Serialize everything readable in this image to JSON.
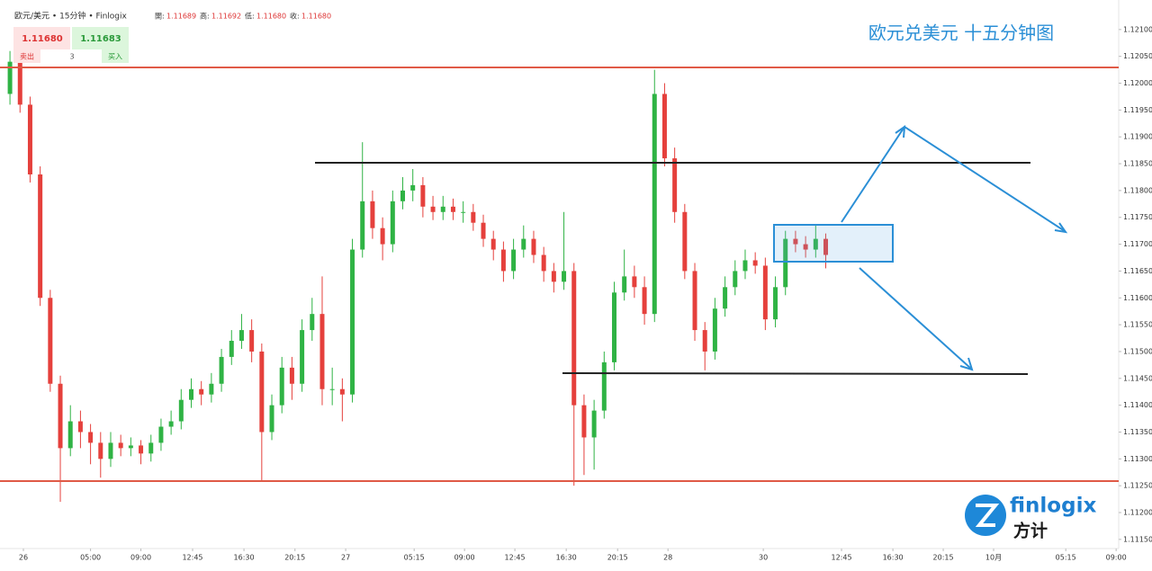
{
  "header": {
    "symbol": "欧元/美元 • 15分钟 • Finlogix",
    "ohlc": [
      {
        "label": "開:",
        "value": "1.11689"
      },
      {
        "label": "高:",
        "value": "1.11692"
      },
      {
        "label": "低:",
        "value": "1.11680"
      },
      {
        "label": "收:",
        "value": "1.11680"
      }
    ],
    "bid": "1.11680",
    "ask": "1.11683",
    "sell": "卖出",
    "spread": "3",
    "buy": "买入"
  },
  "logo": {
    "name": "finlogix",
    "chinese": "方计"
  },
  "chart_data": {
    "type": "candlestick",
    "title": "欧元兑美元 十五分钟图",
    "up_color": "#2fb344",
    "down_color": "#e5403c",
    "x": [
      -4,
      -1,
      2,
      5,
      8,
      11,
      14,
      17,
      20,
      23,
      26,
      29,
      32,
      35,
      38,
      41,
      44,
      47,
      50,
      53,
      56,
      59,
      62,
      65,
      68,
      71,
      74,
      77,
      80,
      83,
      86,
      89,
      92,
      95,
      98,
      101,
      104,
      107,
      110,
      113,
      116,
      119,
      122,
      125,
      128,
      131,
      134,
      137,
      140,
      143,
      146,
      149,
      152,
      155,
      158,
      161,
      164,
      167,
      170,
      173,
      176,
      179,
      182,
      185,
      188,
      191,
      194,
      197,
      200,
      203,
      206,
      209,
      212,
      215,
      218,
      221,
      224,
      227,
      230,
      233,
      236,
      239
    ],
    "open": [
      1.1198,
      1.1204,
      1.1196,
      1.1183,
      1.116,
      1.1144,
      1.1132,
      1.1137,
      1.1135,
      1.1133,
      1.113,
      1.1133,
      1.1132,
      1.11325,
      1.1131,
      1.1133,
      1.1136,
      1.1137,
      1.1141,
      1.1143,
      1.1142,
      1.1144,
      1.1149,
      1.1152,
      1.1154,
      1.115,
      1.1135,
      1.114,
      1.1147,
      1.1144,
      1.1154,
      1.1157,
      1.1143,
      1.1143,
      1.1142,
      1.1169,
      1.1178,
      1.1173,
      1.117,
      1.1178,
      1.118,
      1.1181,
      1.1177,
      1.1176,
      1.1177,
      1.1176,
      1.1176,
      1.1174,
      1.1171,
      1.1169,
      1.1165,
      1.1169,
      1.1171,
      1.1168,
      1.1165,
      1.1163,
      1.1165,
      1.114,
      1.1134,
      1.1139,
      1.1148,
      1.1161,
      1.1164,
      1.1162,
      1.1157,
      1.1198,
      1.1186,
      1.1176,
      1.1165,
      1.1154,
      1.115,
      1.1158,
      1.1162,
      1.1165,
      1.1167,
      1.1166,
      1.1156,
      1.1162,
      1.1171,
      1.117,
      1.1169,
      1.1171
    ],
    "high": [
      1.1206,
      1.12055,
      1.11975,
      1.11845,
      1.11615,
      1.11455,
      1.114,
      1.1139,
      1.11365,
      1.1135,
      1.1135,
      1.11345,
      1.1134,
      1.11335,
      1.11345,
      1.11375,
      1.1139,
      1.1143,
      1.1145,
      1.11445,
      1.1146,
      1.11505,
      1.1154,
      1.1157,
      1.1156,
      1.11515,
      1.1142,
      1.1149,
      1.1149,
      1.1156,
      1.116,
      1.1164,
      1.1147,
      1.1145,
      1.1171,
      1.1189,
      1.118,
      1.1175,
      1.118,
      1.11825,
      1.1184,
      1.11825,
      1.1179,
      1.1179,
      1.11785,
      1.1178,
      1.11775,
      1.11755,
      1.11725,
      1.11705,
      1.1171,
      1.11735,
      1.11725,
      1.11695,
      1.11665,
      1.1176,
      1.11665,
      1.1142,
      1.1141,
      1.115,
      1.1163,
      1.1169,
      1.1166,
      1.1164,
      1.12025,
      1.12,
      1.1188,
      1.11775,
      1.11665,
      1.11555,
      1.116,
      1.1164,
      1.1167,
      1.1169,
      1.11685,
      1.11675,
      1.1164,
      1.11725,
      1.11725,
      1.11715,
      1.11735,
      1.1172
    ],
    "low": [
      1.1196,
      1.11945,
      1.11815,
      1.11585,
      1.11425,
      1.1122,
      1.11305,
      1.1132,
      1.1129,
      1.11265,
      1.11285,
      1.11305,
      1.11305,
      1.1129,
      1.11295,
      1.11315,
      1.11345,
      1.11355,
      1.11395,
      1.114,
      1.11405,
      1.11425,
      1.11475,
      1.11505,
      1.1148,
      1.1126,
      1.11335,
      1.11385,
      1.1141,
      1.11425,
      1.1152,
      1.114,
      1.114,
      1.1137,
      1.11405,
      1.11675,
      1.1171,
      1.1167,
      1.11685,
      1.11765,
      1.1178,
      1.1175,
      1.11745,
      1.11745,
      1.11745,
      1.1174,
      1.11725,
      1.11695,
      1.1167,
      1.1163,
      1.11635,
      1.11675,
      1.11665,
      1.1163,
      1.1161,
      1.11615,
      1.1125,
      1.1127,
      1.1128,
      1.11375,
      1.11465,
      1.11595,
      1.116,
      1.1155,
      1.11555,
      1.11845,
      1.1174,
      1.11635,
      1.1152,
      1.11465,
      1.11485,
      1.11565,
      1.11605,
      1.11635,
      1.11645,
      1.1154,
      1.11545,
      1.11605,
      1.11685,
      1.11675,
      1.11675,
      1.11655
    ],
    "close": [
      1.1204,
      1.1196,
      1.1183,
      1.116,
      1.1144,
      1.1132,
      1.1137,
      1.1135,
      1.1133,
      1.113,
      1.1133,
      1.1132,
      1.11325,
      1.1131,
      1.1133,
      1.1136,
      1.1137,
      1.1141,
      1.1143,
      1.1142,
      1.1144,
      1.1149,
      1.1152,
      1.1154,
      1.115,
      1.1135,
      1.114,
      1.1147,
      1.1144,
      1.1154,
      1.1157,
      1.1143,
      1.1143,
      1.1142,
      1.1169,
      1.1178,
      1.1173,
      1.117,
      1.1178,
      1.118,
      1.1181,
      1.1177,
      1.1176,
      1.1177,
      1.1176,
      1.1176,
      1.1174,
      1.1171,
      1.1169,
      1.1165,
      1.1169,
      1.1171,
      1.1168,
      1.1165,
      1.1163,
      1.1165,
      1.114,
      1.1134,
      1.1139,
      1.1148,
      1.1161,
      1.1164,
      1.1162,
      1.1157,
      1.1198,
      1.1186,
      1.1176,
      1.1165,
      1.1154,
      1.115,
      1.1158,
      1.1162,
      1.1165,
      1.1167,
      1.1166,
      1.1156,
      1.1162,
      1.1171,
      1.117,
      1.1169,
      1.1171,
      1.1168
    ],
    "xlim": [
      -6.97,
      326.8
    ],
    "ylim": [
      1.11133,
      1.12155
    ],
    "xticks": [
      {
        "value": 0,
        "label": "26"
      },
      {
        "value": 20,
        "label": "05:00"
      },
      {
        "value": 35,
        "label": "09:00"
      },
      {
        "value": 50.4,
        "label": "12:45"
      },
      {
        "value": 65.7,
        "label": "16:30"
      },
      {
        "value": 80.9,
        "label": "20:15"
      },
      {
        "value": 96,
        "label": "27"
      },
      {
        "value": 116.4,
        "label": "05:15"
      },
      {
        "value": 131.4,
        "label": "09:00"
      },
      {
        "value": 146.4,
        "label": "12:45"
      },
      {
        "value": 161.7,
        "label": "16:30"
      },
      {
        "value": 177,
        "label": "20:15"
      },
      {
        "value": 192,
        "label": "28"
      },
      {
        "value": 220.4,
        "label": "30"
      },
      {
        "value": 243.7,
        "label": "12:45"
      },
      {
        "value": 259,
        "label": "16:30"
      },
      {
        "value": 274,
        "label": "20:15"
      },
      {
        "value": 289,
        "label": "10月"
      },
      {
        "value": 310.5,
        "label": "05:15"
      },
      {
        "value": 325.5,
        "label": "09:00"
      }
    ],
    "yticks": [
      {
        "value": 1.1115,
        "label": "1.11150"
      },
      {
        "value": 1.112,
        "label": "1.11200"
      },
      {
        "value": 1.1125,
        "label": "1.11250"
      },
      {
        "value": 1.113,
        "label": "1.11300"
      },
      {
        "value": 1.1135,
        "label": "1.11350"
      },
      {
        "value": 1.114,
        "label": "1.11400"
      },
      {
        "value": 1.1145,
        "label": "1.11450"
      },
      {
        "value": 1.115,
        "label": "1.11500"
      },
      {
        "value": 1.1155,
        "label": "1.11550"
      },
      {
        "value": 1.116,
        "label": "1.11600"
      },
      {
        "value": 1.1165,
        "label": "1.11650"
      },
      {
        "value": 1.117,
        "label": "1.11700"
      },
      {
        "value": 1.1175,
        "label": "1.11750"
      },
      {
        "value": 1.118,
        "label": "1.11800"
      },
      {
        "value": 1.1185,
        "label": "1.11850"
      },
      {
        "value": 1.119,
        "label": "1.11900"
      },
      {
        "value": 1.1195,
        "label": "1.11950"
      },
      {
        "value": 1.12,
        "label": "1.12000"
      },
      {
        "value": 1.1205,
        "label": "1.12050"
      },
      {
        "value": 1.121,
        "label": "1.12100"
      }
    ]
  }
}
